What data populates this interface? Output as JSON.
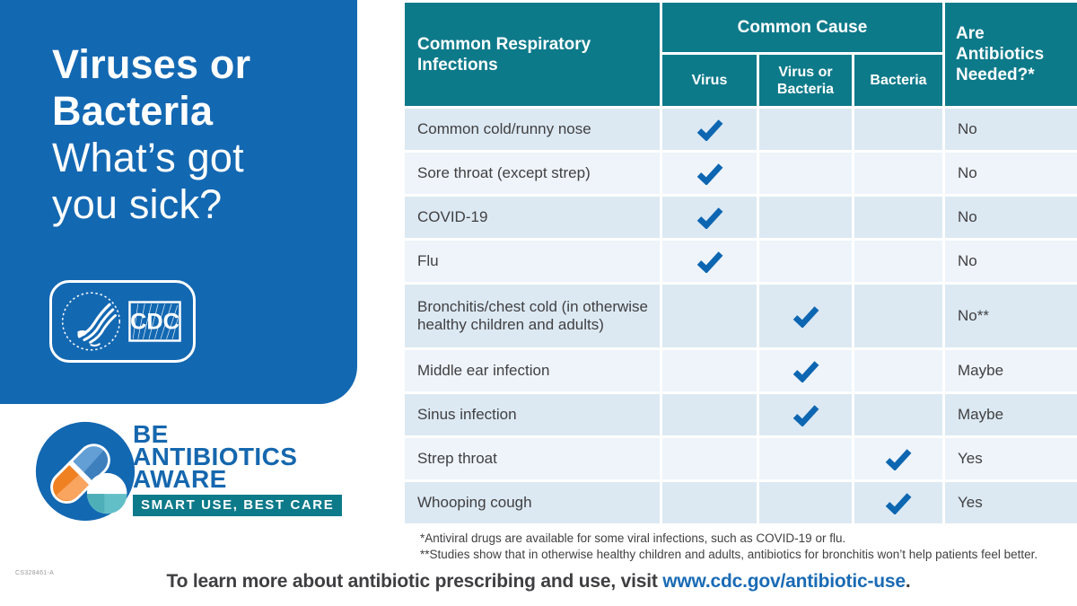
{
  "colors": {
    "panel_blue": "#1368B2",
    "teal": "#0D7A8A",
    "check_blue": "#0D66B1",
    "row_dark": "#DCE9F3",
    "row_light": "#EEF4FA",
    "text_dark": "#414042",
    "link_blue": "#1A6BB5",
    "pill_orange": "#F08123",
    "pill_orange_light": "#F9A45F",
    "pill_blue_light": "#639FD4",
    "ball_teal": "#63BFC7"
  },
  "left_panel": {
    "title_bold_line1": "Viruses or",
    "title_bold_line2": "Bacteria",
    "title_light_line1": "What’s got",
    "title_light_line2": "you sick?",
    "cdc_logo_text": "CDC"
  },
  "aware_logo": {
    "line1": "BE",
    "line2": "ANTIBIOTICS",
    "line3": "AWARE",
    "banner": "SMART USE, BEST CARE"
  },
  "doc_code": "CS328461-A",
  "table": {
    "col1_header": "Common Respiratory Infections",
    "group_header": "Common Cause",
    "sub_headers": {
      "virus": "Virus",
      "virus_or_bacteria": "Virus or Bacteria",
      "bacteria": "Bacteria"
    },
    "right_header": "Are Antibiotics Needed?*",
    "rows": [
      {
        "label": "Common cold/runny nose",
        "cause": "virus",
        "answer": "No"
      },
      {
        "label": "Sore throat (except strep)",
        "cause": "virus",
        "answer": "No"
      },
      {
        "label": "COVID-19",
        "cause": "virus",
        "answer": "No"
      },
      {
        "label": "Flu",
        "cause": "virus",
        "answer": "No"
      },
      {
        "label": "Bronchitis/chest cold (in otherwise healthy children and adults)",
        "cause": "virus_or_bacteria",
        "answer": "No**"
      },
      {
        "label": "Middle ear infection",
        "cause": "virus_or_bacteria",
        "answer": "Maybe"
      },
      {
        "label": "Sinus infection",
        "cause": "virus_or_bacteria",
        "answer": "Maybe"
      },
      {
        "label": "Strep throat",
        "cause": "bacteria",
        "answer": "Yes"
      },
      {
        "label": "Whooping cough",
        "cause": "bacteria",
        "answer": "Yes"
      }
    ],
    "footnotes": [
      "*Antiviral drugs are available for some viral infections, such as COVID-19 or flu.",
      "**Studies show that in otherwise healthy children and adults, antibiotics for bronchitis won’t help patients feel better."
    ]
  },
  "footer": {
    "prefix": "To learn more about antibiotic prescribing and use, visit ",
    "link": "www.cdc.gov/antibiotic-use",
    "suffix": "."
  }
}
